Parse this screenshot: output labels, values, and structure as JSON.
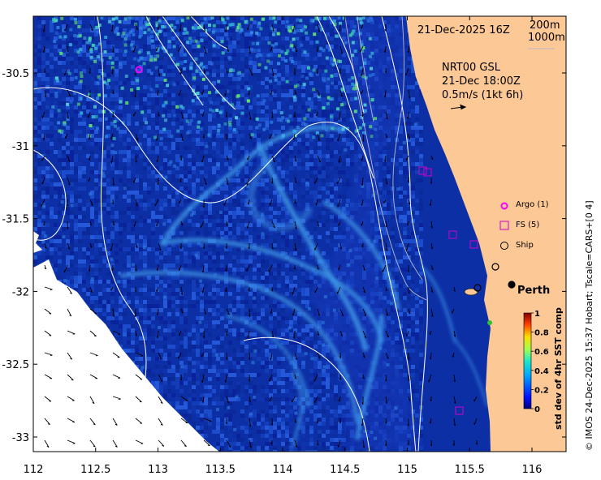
{
  "header": {
    "date": "21-Dec-2025 16Z",
    "depth_a": "200m",
    "depth_b": "1000m"
  },
  "currents": {
    "title": "NRT00 GSL",
    "time": "21-Dec 18:00Z",
    "scale": "0.5m/s (1kt 6h)"
  },
  "legend": {
    "argo": "Argo (1)",
    "fs": "FS (5)",
    "ship": "Ship"
  },
  "place": "Perth",
  "colorbar": {
    "label": "std dev of 4hr SST comp",
    "ticks": [
      "1",
      "0.8",
      "0.6",
      "0.4",
      "0.2",
      "0"
    ]
  },
  "credit": "© IMOS 24-Dec-2025 15:37 Hobart; Tscale=CARS+[0 4]",
  "axes": {
    "x_ticks": [
      "112",
      "112.5",
      "113",
      "113.5",
      "114",
      "114.5",
      "115",
      "115.5",
      "116"
    ],
    "y_ticks": [
      "-30.5",
      "-31",
      "-31.5",
      "-32",
      "-32.5",
      "-33"
    ]
  },
  "colors": {
    "ocean_deep": "#0a2a9e",
    "ocean_mid": "#1f5fd6",
    "filament": "#3c9be8",
    "land": "#fcc896",
    "contour": "#ffffff",
    "argo": "#ff00ff",
    "fs": "#d000d0"
  }
}
